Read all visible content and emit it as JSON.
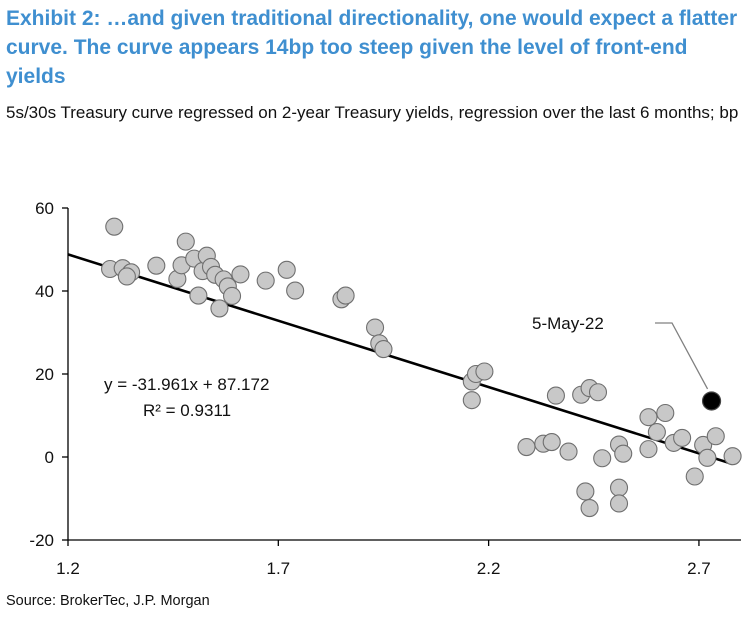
{
  "header": {
    "title": "Exhibit 2: …and given traditional directionality, one would expect a flatter curve.  The curve appears 14bp too steep given the level of front-end yields",
    "subtitle": "5s/30s Treasury curve regressed on 2-year Treasury yields, regression over the last 6 months; bp"
  },
  "footer": {
    "source": "Source: BrokerTec, J.P. Morgan"
  },
  "colors": {
    "title": "#3f8fd0",
    "point_fill": "#c8c8c8",
    "point_stroke": "#6f6f6f",
    "highlight_fill": "#000000",
    "trendline": "#000000"
  },
  "chart_data": {
    "type": "scatter",
    "title": "",
    "xlabel": "",
    "ylabel": "",
    "xlim": [
      1.2,
      2.8
    ],
    "ylim": [
      -20,
      60
    ],
    "x_ticks": [
      1.2,
      1.7,
      2.2,
      2.7
    ],
    "x_tick_labels": [
      "1.2",
      "1.7",
      "2.2",
      "2.7"
    ],
    "y_ticks": [
      60,
      40,
      20,
      0,
      -20
    ],
    "y_tick_labels": [
      "60",
      "40",
      "20",
      "0",
      "-20"
    ],
    "grid": false,
    "series": [
      {
        "points": [
          [
            1.31,
            55.5
          ],
          [
            1.3,
            45.3
          ],
          [
            1.33,
            45.5
          ],
          [
            1.35,
            44.5
          ],
          [
            1.34,
            43.5
          ],
          [
            1.41,
            46.1
          ],
          [
            1.46,
            42.9
          ],
          [
            1.47,
            46.2
          ],
          [
            1.48,
            51.9
          ],
          [
            1.5,
            47.8
          ],
          [
            1.51,
            38.9
          ],
          [
            1.52,
            44.8
          ],
          [
            1.53,
            48.5
          ],
          [
            1.54,
            45.8
          ],
          [
            1.55,
            43.9
          ],
          [
            1.56,
            35.8
          ],
          [
            1.57,
            42.8
          ],
          [
            1.58,
            41.1
          ],
          [
            1.59,
            38.8
          ],
          [
            1.61,
            44.0
          ],
          [
            1.67,
            42.5
          ],
          [
            1.72,
            45.1
          ],
          [
            1.74,
            40.1
          ],
          [
            1.85,
            38.0
          ],
          [
            1.86,
            38.9
          ],
          [
            1.93,
            31.2
          ],
          [
            1.94,
            27.4
          ],
          [
            1.95,
            26.0
          ],
          [
            2.16,
            18.2
          ],
          [
            2.17,
            20.0
          ],
          [
            2.16,
            13.7
          ],
          [
            2.19,
            20.6
          ],
          [
            2.29,
            2.4
          ],
          [
            2.33,
            3.2
          ],
          [
            2.35,
            3.6
          ],
          [
            2.36,
            14.8
          ],
          [
            2.42,
            15.0
          ],
          [
            2.39,
            1.3
          ],
          [
            2.44,
            16.6
          ],
          [
            2.46,
            15.6
          ],
          [
            2.43,
            -8.3
          ],
          [
            2.44,
            -12.3
          ],
          [
            2.47,
            -0.3
          ],
          [
            2.51,
            3.0
          ],
          [
            2.51,
            -7.4
          ],
          [
            2.51,
            -11.2
          ],
          [
            2.52,
            0.8
          ],
          [
            2.58,
            1.9
          ],
          [
            2.58,
            9.6
          ],
          [
            2.6,
            6.0
          ],
          [
            2.62,
            10.6
          ],
          [
            2.64,
            3.4
          ],
          [
            2.66,
            4.6
          ],
          [
            2.69,
            -4.7
          ],
          [
            2.71,
            2.9
          ],
          [
            2.72,
            -0.2
          ],
          [
            2.74,
            5.0
          ],
          [
            2.78,
            0.2
          ]
        ]
      },
      {
        "points": [
          [
            2.73,
            13.5
          ]
        ]
      }
    ],
    "trendline": {
      "slope": -31.961,
      "intercept": 87.172,
      "x_range": [
        1.2,
        2.78
      ],
      "equation": "y = -31.961x + 87.172",
      "r_squared": "R² = 0.9311"
    },
    "annotations": [
      {
        "text": "5-May-22",
        "target": [
          2.73,
          13.5
        ]
      }
    ]
  }
}
